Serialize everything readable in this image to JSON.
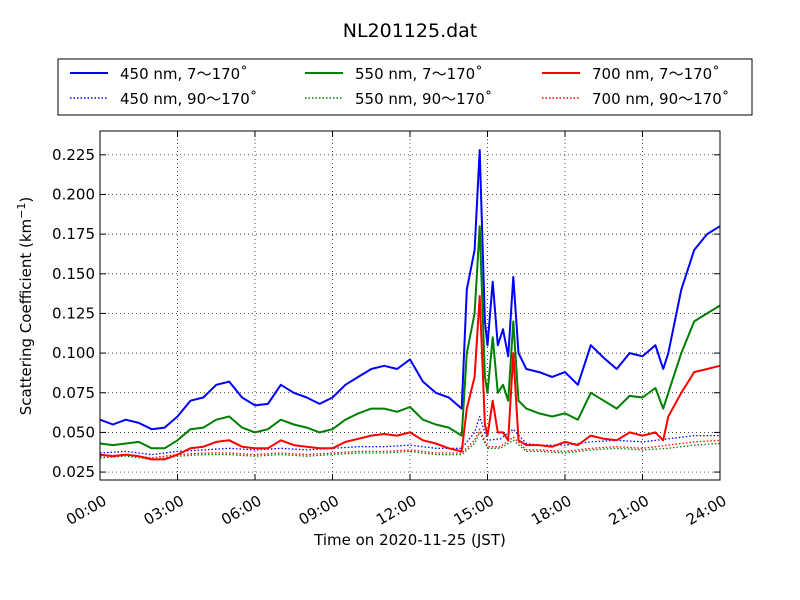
{
  "chart_data": {
    "type": "line",
    "title": "NL201125.dat",
    "xlabel": "Time on 2020-11-25 (JST)",
    "ylabel_main": "Scattering Coefficient (km",
    "ylabel_sup": "−1",
    "ylabel_end": ")",
    "xlim": [
      0,
      24
    ],
    "ylim": [
      0.02,
      0.24
    ],
    "x_ticks": [
      {
        "value": 0,
        "label": "00:00"
      },
      {
        "value": 3,
        "label": "03:00"
      },
      {
        "value": 6,
        "label": "06:00"
      },
      {
        "value": 9,
        "label": "09:00"
      },
      {
        "value": 12,
        "label": "12:00"
      },
      {
        "value": 15,
        "label": "15:00"
      },
      {
        "value": 18,
        "label": "18:00"
      },
      {
        "value": 21,
        "label": "21:00"
      },
      {
        "value": 24,
        "label": "24:00"
      }
    ],
    "y_ticks": [
      {
        "value": 0.025,
        "label": "0.025"
      },
      {
        "value": 0.05,
        "label": "0.050"
      },
      {
        "value": 0.075,
        "label": "0.075"
      },
      {
        "value": 0.1,
        "label": "0.100"
      },
      {
        "value": 0.125,
        "label": "0.125"
      },
      {
        "value": 0.15,
        "label": "0.150"
      },
      {
        "value": 0.175,
        "label": "0.175"
      },
      {
        "value": 0.2,
        "label": "0.200"
      },
      {
        "value": 0.225,
        "label": "0.225"
      }
    ],
    "grid": true,
    "legend_position": "top",
    "series": [
      {
        "name": "450 nm, 7～170˚",
        "color": "#0000ff",
        "style": "solid",
        "x": [
          0,
          0.5,
          1,
          1.5,
          2,
          2.5,
          3,
          3.5,
          4,
          4.5,
          5,
          5.5,
          6,
          6.5,
          7,
          7.5,
          8,
          8.5,
          9,
          9.5,
          10,
          10.5,
          11,
          11.5,
          12,
          12.5,
          13,
          13.5,
          14,
          14.2,
          14.5,
          14.7,
          14.9,
          15,
          15.2,
          15.4,
          15.6,
          15.8,
          16,
          16.2,
          16.5,
          17,
          17.5,
          18,
          18.5,
          19,
          19.5,
          20,
          20.5,
          21,
          21.5,
          21.8,
          22,
          22.5,
          23,
          23.5,
          24
        ],
        "values": [
          0.058,
          0.055,
          0.058,
          0.056,
          0.052,
          0.053,
          0.06,
          0.07,
          0.072,
          0.08,
          0.082,
          0.072,
          0.067,
          0.068,
          0.08,
          0.075,
          0.072,
          0.068,
          0.072,
          0.08,
          0.085,
          0.09,
          0.092,
          0.09,
          0.096,
          0.082,
          0.075,
          0.072,
          0.065,
          0.14,
          0.165,
          0.228,
          0.12,
          0.105,
          0.145,
          0.105,
          0.115,
          0.098,
          0.148,
          0.1,
          0.09,
          0.088,
          0.085,
          0.088,
          0.08,
          0.105,
          0.097,
          0.09,
          0.1,
          0.098,
          0.105,
          0.09,
          0.1,
          0.14,
          0.165,
          0.175,
          0.18
        ]
      },
      {
        "name": "550 nm, 7～170˚",
        "color": "#008000",
        "style": "solid",
        "x": [
          0,
          0.5,
          1,
          1.5,
          2,
          2.5,
          3,
          3.5,
          4,
          4.5,
          5,
          5.5,
          6,
          6.5,
          7,
          7.5,
          8,
          8.5,
          9,
          9.5,
          10,
          10.5,
          11,
          11.5,
          12,
          12.5,
          13,
          13.5,
          14,
          14.2,
          14.5,
          14.7,
          14.9,
          15,
          15.2,
          15.4,
          15.6,
          15.8,
          16,
          16.2,
          16.5,
          17,
          17.5,
          18,
          18.5,
          19,
          19.5,
          20,
          20.5,
          21,
          21.5,
          21.8,
          22,
          22.5,
          23,
          23.5,
          24
        ],
        "values": [
          0.043,
          0.042,
          0.043,
          0.044,
          0.04,
          0.04,
          0.045,
          0.052,
          0.053,
          0.058,
          0.06,
          0.053,
          0.05,
          0.052,
          0.058,
          0.055,
          0.053,
          0.05,
          0.052,
          0.058,
          0.062,
          0.065,
          0.065,
          0.063,
          0.066,
          0.058,
          0.055,
          0.053,
          0.048,
          0.1,
          0.125,
          0.18,
          0.085,
          0.075,
          0.11,
          0.075,
          0.08,
          0.07,
          0.12,
          0.07,
          0.065,
          0.062,
          0.06,
          0.062,
          0.058,
          0.075,
          0.07,
          0.065,
          0.073,
          0.072,
          0.078,
          0.065,
          0.075,
          0.1,
          0.12,
          0.125,
          0.13
        ]
      },
      {
        "name": "700 nm, 7～170˚",
        "color": "#ff0000",
        "style": "solid",
        "x": [
          0,
          0.5,
          1,
          1.5,
          2,
          2.5,
          3,
          3.5,
          4,
          4.5,
          5,
          5.5,
          6,
          6.5,
          7,
          7.5,
          8,
          8.5,
          9,
          9.5,
          10,
          10.5,
          11,
          11.5,
          12,
          12.5,
          13,
          13.5,
          14,
          14.2,
          14.5,
          14.7,
          14.9,
          15,
          15.2,
          15.4,
          15.6,
          15.8,
          16,
          16.2,
          16.5,
          17,
          17.5,
          18,
          18.5,
          19,
          19.5,
          20,
          20.5,
          21,
          21.5,
          21.8,
          22,
          22.5,
          23,
          23.5,
          24
        ],
        "values": [
          0.036,
          0.035,
          0.036,
          0.035,
          0.033,
          0.033,
          0.036,
          0.04,
          0.041,
          0.044,
          0.045,
          0.041,
          0.04,
          0.04,
          0.045,
          0.042,
          0.041,
          0.04,
          0.04,
          0.044,
          0.046,
          0.048,
          0.049,
          0.048,
          0.05,
          0.045,
          0.043,
          0.04,
          0.038,
          0.065,
          0.085,
          0.136,
          0.055,
          0.048,
          0.07,
          0.05,
          0.05,
          0.045,
          0.1,
          0.045,
          0.042,
          0.042,
          0.041,
          0.044,
          0.042,
          0.048,
          0.046,
          0.045,
          0.05,
          0.048,
          0.05,
          0.045,
          0.06,
          0.075,
          0.088,
          0.09,
          0.092
        ]
      },
      {
        "name": "450 nm, 90～170˚",
        "color": "#0000ff",
        "style": "dotted",
        "x": [
          0,
          1,
          2,
          3,
          4,
          5,
          6,
          7,
          8,
          9,
          10,
          11,
          12,
          13,
          14,
          14.5,
          14.7,
          15,
          15.5,
          16,
          16.5,
          17,
          18,
          19,
          20,
          21,
          22,
          23,
          24
        ],
        "values": [
          0.037,
          0.038,
          0.036,
          0.038,
          0.039,
          0.04,
          0.039,
          0.04,
          0.039,
          0.04,
          0.041,
          0.041,
          0.042,
          0.04,
          0.04,
          0.05,
          0.06,
          0.045,
          0.046,
          0.052,
          0.043,
          0.042,
          0.042,
          0.044,
          0.045,
          0.044,
          0.046,
          0.048,
          0.048
        ]
      },
      {
        "name": "550 nm, 90～170˚",
        "color": "#008000",
        "style": "dotted",
        "x": [
          0,
          1,
          2,
          3,
          4,
          5,
          6,
          7,
          8,
          9,
          10,
          11,
          12,
          13,
          14,
          14.5,
          14.7,
          15,
          15.5,
          16,
          16.5,
          17,
          18,
          19,
          20,
          21,
          22,
          23,
          24
        ],
        "values": [
          0.034,
          0.035,
          0.033,
          0.035,
          0.036,
          0.036,
          0.035,
          0.036,
          0.035,
          0.036,
          0.037,
          0.037,
          0.038,
          0.036,
          0.036,
          0.043,
          0.05,
          0.04,
          0.04,
          0.045,
          0.038,
          0.038,
          0.037,
          0.039,
          0.04,
          0.039,
          0.04,
          0.042,
          0.043
        ]
      },
      {
        "name": "700 nm, 90～170˚",
        "color": "#ff0000",
        "style": "dotted",
        "x": [
          0,
          1,
          2,
          3,
          4,
          5,
          6,
          7,
          8,
          9,
          10,
          11,
          12,
          13,
          14,
          14.5,
          14.7,
          15,
          15.5,
          16,
          16.5,
          17,
          18,
          19,
          20,
          21,
          22,
          23,
          24
        ],
        "values": [
          0.035,
          0.036,
          0.034,
          0.036,
          0.037,
          0.037,
          0.036,
          0.037,
          0.036,
          0.037,
          0.038,
          0.038,
          0.039,
          0.037,
          0.037,
          0.045,
          0.052,
          0.041,
          0.041,
          0.047,
          0.039,
          0.039,
          0.038,
          0.04,
          0.041,
          0.04,
          0.042,
          0.044,
          0.045
        ]
      }
    ]
  }
}
